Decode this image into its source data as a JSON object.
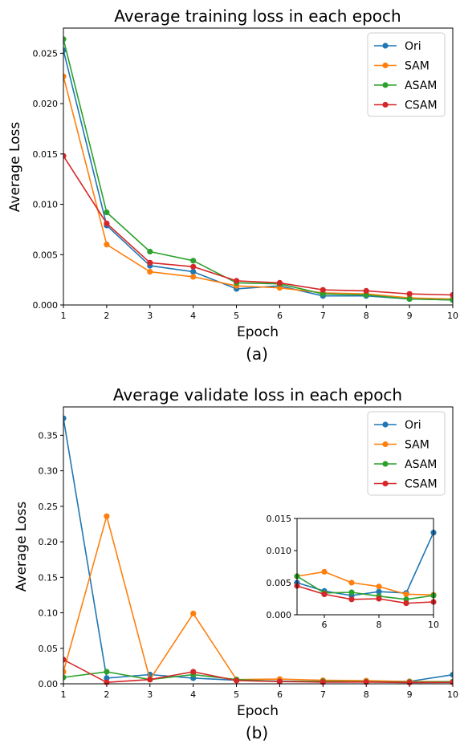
{
  "colors": {
    "Ori": "#1f77b4",
    "SAM": "#ff7f0e",
    "ASAM": "#2ca02c",
    "CSAM": "#d62728"
  },
  "chart_data": [
    {
      "type": "line",
      "title": "Average training loss in each epoch",
      "xlabel": "Epoch",
      "ylabel": "Average Loss",
      "caption": "(a)",
      "x": [
        1,
        2,
        3,
        4,
        5,
        6,
        7,
        8,
        9,
        10
      ],
      "xlim": [
        1,
        10
      ],
      "ylim": [
        0,
        0.0275
      ],
      "xticks": [
        1,
        2,
        3,
        4,
        5,
        6,
        7,
        8,
        9,
        10
      ],
      "yticks": [
        0.0,
        0.005,
        0.01,
        0.015,
        0.02,
        0.025
      ],
      "ytick_labels": [
        "0.000",
        "0.005",
        "0.010",
        "0.015",
        "0.020",
        "0.025"
      ],
      "legend_position": "top-right",
      "series": [
        {
          "name": "Ori",
          "values": [
            0.0253,
            0.0079,
            0.0039,
            0.0033,
            0.0016,
            0.0019,
            0.0009,
            0.0009,
            0.0006,
            0.0005
          ]
        },
        {
          "name": "SAM",
          "values": [
            0.0227,
            0.006,
            0.0033,
            0.0028,
            0.0019,
            0.0017,
            0.0012,
            0.0011,
            0.0007,
            0.0006
          ]
        },
        {
          "name": "ASAM",
          "values": [
            0.0264,
            0.0092,
            0.0053,
            0.0044,
            0.0022,
            0.0021,
            0.0011,
            0.001,
            0.0006,
            0.0005
          ]
        },
        {
          "name": "CSAM",
          "values": [
            0.0148,
            0.0081,
            0.0042,
            0.0038,
            0.0024,
            0.0022,
            0.0015,
            0.0014,
            0.0011,
            0.001
          ]
        }
      ]
    },
    {
      "type": "line",
      "title": "Average validate loss in each epoch",
      "xlabel": "Epoch",
      "ylabel": "Average Loss",
      "caption": "(b)",
      "x": [
        1,
        2,
        3,
        4,
        5,
        6,
        7,
        8,
        9,
        10
      ],
      "xlim": [
        1,
        10
      ],
      "ylim": [
        0,
        0.39
      ],
      "xticks": [
        1,
        2,
        3,
        4,
        5,
        6,
        7,
        8,
        9,
        10
      ],
      "yticks": [
        0.0,
        0.05,
        0.1,
        0.15,
        0.2,
        0.25,
        0.3,
        0.35
      ],
      "ytick_labels": [
        "0.00",
        "0.05",
        "0.10",
        "0.15",
        "0.20",
        "0.25",
        "0.30",
        "0.35"
      ],
      "legend_position": "top-right",
      "series": [
        {
          "name": "Ori",
          "values": [
            0.374,
            0.008,
            0.013,
            0.008,
            0.005,
            0.0037,
            0.003,
            0.0036,
            0.0034,
            0.0128
          ]
        },
        {
          "name": "SAM",
          "values": [
            0.017,
            0.236,
            0.006,
            0.099,
            0.006,
            0.0067,
            0.005,
            0.0044,
            0.0032,
            0.0031
          ]
        },
        {
          "name": "ASAM",
          "values": [
            0.009,
            0.017,
            0.006,
            0.013,
            0.006,
            0.0034,
            0.0035,
            0.0029,
            0.0024,
            0.003
          ]
        },
        {
          "name": "CSAM",
          "values": [
            0.034,
            0.002,
            0.006,
            0.017,
            0.0045,
            0.0032,
            0.0024,
            0.0025,
            0.0018,
            0.002
          ]
        }
      ],
      "inset": {
        "xlim": [
          5,
          10
        ],
        "ylim": [
          0,
          0.015
        ],
        "xticks": [
          6,
          8,
          10
        ],
        "yticks": [
          0.0,
          0.005,
          0.01,
          0.015
        ],
        "ytick_labels": [
          "0.000",
          "0.005",
          "0.010",
          "0.015"
        ]
      }
    }
  ]
}
